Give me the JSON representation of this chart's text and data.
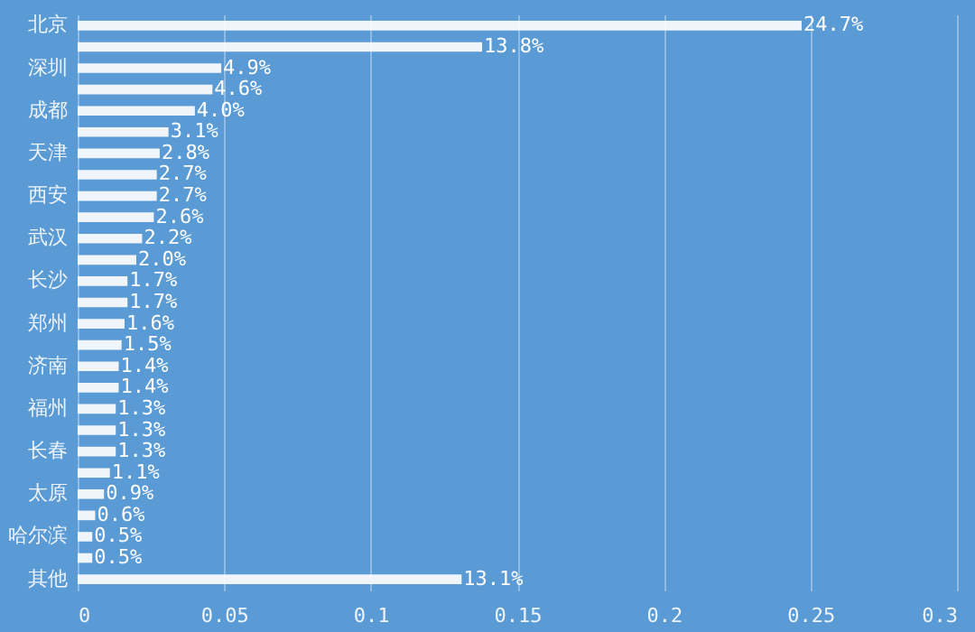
{
  "chart_data": {
    "type": "bar",
    "orientation": "horizontal",
    "categories": [
      "北京",
      null,
      "深圳",
      null,
      "成都",
      null,
      "天津",
      null,
      "西安",
      null,
      "武汉",
      null,
      "长沙",
      null,
      "郑州",
      null,
      "济南",
      null,
      "福州",
      null,
      "长春",
      null,
      "太原",
      null,
      "哈尔滨",
      null,
      "其他"
    ],
    "values": [
      0.247,
      0.138,
      0.049,
      0.046,
      0.04,
      0.031,
      0.028,
      0.027,
      0.027,
      0.026,
      0.022,
      0.02,
      0.017,
      0.017,
      0.016,
      0.015,
      0.014,
      0.014,
      0.013,
      0.013,
      0.013,
      0.011,
      0.009,
      0.006,
      0.005,
      0.005,
      0.131
    ],
    "value_labels": [
      "24.7%",
      "13.8%",
      "4.9%",
      "4.6%",
      "4.0%",
      "3.1%",
      "2.8%",
      "2.7%",
      "2.7%",
      "2.6%",
      "2.2%",
      "2.0%",
      "1.7%",
      "1.7%",
      "1.6%",
      "1.5%",
      "1.4%",
      "1.4%",
      "1.3%",
      "1.3%",
      "1.3%",
      "1.1%",
      "0.9%",
      "0.6%",
      "0.5%",
      "0.5%",
      "13.1%"
    ],
    "color": "#ffffff",
    "xlim": [
      0,
      0.3
    ],
    "xticks": [
      0,
      0.05,
      0.1,
      0.15,
      0.2,
      0.25,
      0.3
    ],
    "grid": "x"
  }
}
